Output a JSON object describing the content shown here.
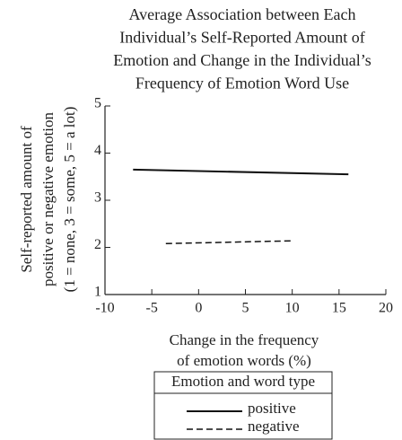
{
  "chart_data": {
    "type": "line",
    "title": [
      "Average Association between Each",
      "Individual’s Self-Reported Amount of",
      "Emotion and Change in the Individual’s",
      "Frequency of Emotion Word Use"
    ],
    "y_label": [
      "Self-reported amount of",
      "positive or negative emotion",
      "(1 = none, 3 = some, 5 = a lot)"
    ],
    "x_label": [
      "Change in the frequency",
      "of emotion words (%)"
    ],
    "legend_title": "Emotion and word type",
    "series": [
      {
        "name": "positive",
        "color": "#111111",
        "dashed": false,
        "x": [
          -7,
          16
        ],
        "values": [
          3.65,
          3.55
        ]
      },
      {
        "name": "negative",
        "color": "#111111",
        "dashed": true,
        "x": [
          -3.5,
          10
        ],
        "values": [
          2.08,
          2.14
        ]
      }
    ],
    "xlim": [
      -10,
      20
    ],
    "xticks": [
      -10,
      -5,
      0,
      5,
      10,
      15,
      20
    ],
    "ylim": [
      1,
      5
    ],
    "yticks": [
      1,
      2,
      3,
      4,
      5
    ]
  }
}
